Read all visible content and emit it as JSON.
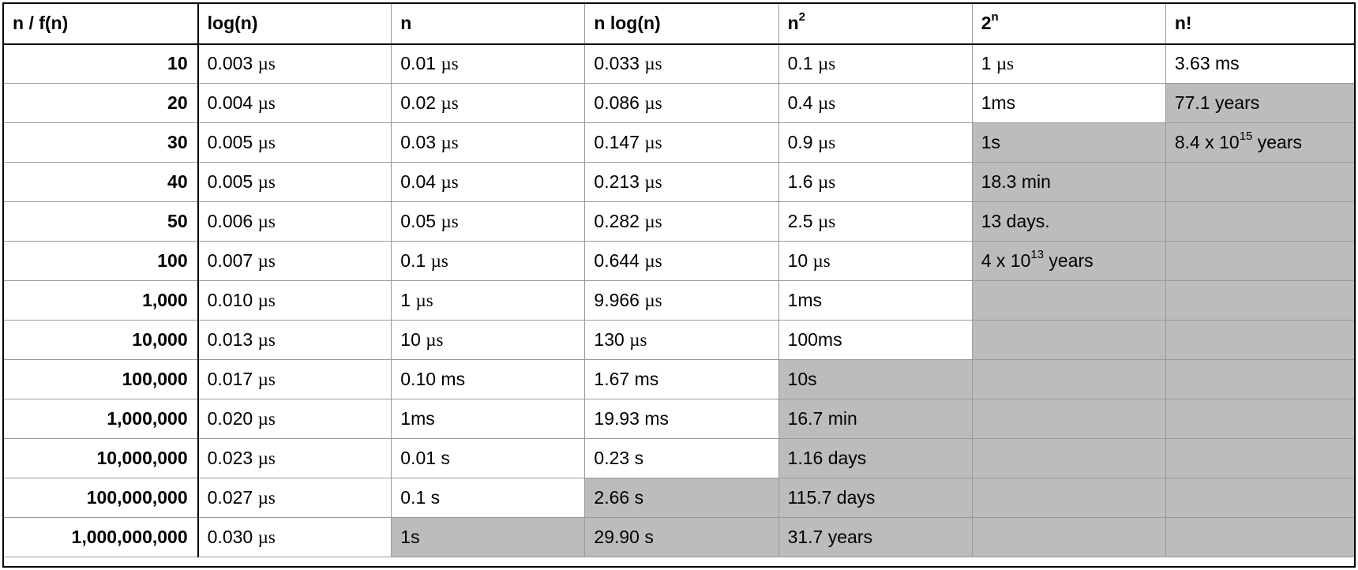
{
  "table": {
    "headers": [
      {
        "base": "n / f(n)",
        "sup": ""
      },
      {
        "base": "log(n)",
        "sup": ""
      },
      {
        "base": "n",
        "sup": ""
      },
      {
        "base": "n log(n)",
        "sup": ""
      },
      {
        "base": "n",
        "sup": "2"
      },
      {
        "base": "2",
        "sup": "n"
      },
      {
        "base": "n!",
        "sup": ""
      }
    ],
    "rows": [
      {
        "n": "10",
        "cells": [
          {
            "v": "0.003",
            "u": "µs",
            "shaded": false
          },
          {
            "v": "0.01",
            "u": "µs",
            "shaded": false
          },
          {
            "v": "0.033",
            "u": "µs",
            "shaded": false
          },
          {
            "v": "0.1",
            "u": "µs",
            "shaded": false
          },
          {
            "v": "1",
            "u": "µs",
            "shaded": false
          },
          {
            "v": "3.63 ms",
            "shaded": false
          }
        ]
      },
      {
        "n": "20",
        "cells": [
          {
            "v": "0.004",
            "u": "µs",
            "shaded": false
          },
          {
            "v": "0.02",
            "u": "µs",
            "shaded": false
          },
          {
            "v": "0.086",
            "u": "µs",
            "shaded": false
          },
          {
            "v": "0.4",
            "u": "µs",
            "shaded": false
          },
          {
            "v": "1ms",
            "shaded": false
          },
          {
            "v": "77.1 years",
            "shaded": true
          }
        ]
      },
      {
        "n": "30",
        "cells": [
          {
            "v": "0.005",
            "u": "µs",
            "shaded": false
          },
          {
            "v": "0.03",
            "u": "µs",
            "shaded": false
          },
          {
            "v": "0.147",
            "u": "µs",
            "shaded": false
          },
          {
            "v": "0.9",
            "u": "µs",
            "shaded": false
          },
          {
            "v": "1s",
            "shaded": true
          },
          {
            "v": "8.4 x 10",
            "sup": "15",
            "after": " years",
            "shaded": true
          }
        ]
      },
      {
        "n": "40",
        "cells": [
          {
            "v": "0.005",
            "u": "µs",
            "shaded": false
          },
          {
            "v": "0.04",
            "u": "µs",
            "shaded": false
          },
          {
            "v": "0.213",
            "u": "µs",
            "shaded": false
          },
          {
            "v": "1.6",
            "u": "µs",
            "shaded": false
          },
          {
            "v": "18.3 min",
            "shaded": true
          },
          {
            "v": "",
            "shaded": true
          }
        ]
      },
      {
        "n": "50",
        "cells": [
          {
            "v": "0.006",
            "u": "µs",
            "shaded": false
          },
          {
            "v": "0.05",
            "u": "µs",
            "shaded": false
          },
          {
            "v": "0.282",
            "u": "µs",
            "shaded": false
          },
          {
            "v": "2.5",
            "u": "µs",
            "shaded": false
          },
          {
            "v": "13 days.",
            "shaded": true
          },
          {
            "v": "",
            "shaded": true
          }
        ]
      },
      {
        "n": "100",
        "cells": [
          {
            "v": "0.007",
            "u": "µs",
            "shaded": false
          },
          {
            "v": "0.1",
            "u": "µs",
            "shaded": false
          },
          {
            "v": "0.644",
            "u": "µs",
            "shaded": false
          },
          {
            "v": "10",
            "u": "µs",
            "shaded": false
          },
          {
            "v": "4 x 10",
            "sup": "13",
            "after": " years",
            "shaded": true
          },
          {
            "v": "",
            "shaded": true
          }
        ]
      },
      {
        "n": "1,000",
        "cells": [
          {
            "v": "0.010",
            "u": "µs",
            "shaded": false
          },
          {
            "v": "1",
            "u": "µs",
            "shaded": false
          },
          {
            "v": "9.966",
            "u": "µs",
            "shaded": false
          },
          {
            "v": "1ms",
            "shaded": false
          },
          {
            "v": "",
            "shaded": true
          },
          {
            "v": "",
            "shaded": true
          }
        ]
      },
      {
        "n": "10,000",
        "cells": [
          {
            "v": "0.013",
            "u": "µs",
            "shaded": false
          },
          {
            "v": "10",
            "u": "µs",
            "shaded": false
          },
          {
            "v": "130",
            "u": "µs",
            "shaded": false
          },
          {
            "v": "100ms",
            "shaded": false
          },
          {
            "v": "",
            "shaded": true
          },
          {
            "v": "",
            "shaded": true
          }
        ]
      },
      {
        "n": "100,000",
        "cells": [
          {
            "v": "0.017",
            "u": "µs",
            "shaded": false
          },
          {
            "v": "0.10 ms",
            "shaded": false
          },
          {
            "v": "1.67 ms",
            "shaded": false
          },
          {
            "v": "10s",
            "shaded": true
          },
          {
            "v": "",
            "shaded": true
          },
          {
            "v": "",
            "shaded": true
          }
        ]
      },
      {
        "n": "1,000,000",
        "cells": [
          {
            "v": "0.020",
            "u": "µs",
            "shaded": false
          },
          {
            "v": "1ms",
            "shaded": false
          },
          {
            "v": "19.93 ms",
            "shaded": false
          },
          {
            "v": "16.7 min",
            "shaded": true
          },
          {
            "v": "",
            "shaded": true
          },
          {
            "v": "",
            "shaded": true
          }
        ]
      },
      {
        "n": "10,000,000",
        "cells": [
          {
            "v": "0.023",
            "u": "µs",
            "shaded": false
          },
          {
            "v": "0.01 s",
            "shaded": false
          },
          {
            "v": "0.23 s",
            "shaded": false
          },
          {
            "v": "1.16 days",
            "shaded": true
          },
          {
            "v": "",
            "shaded": true
          },
          {
            "v": "",
            "shaded": true
          }
        ]
      },
      {
        "n": "100,000,000",
        "cells": [
          {
            "v": "0.027",
            "u": "µs",
            "shaded": false
          },
          {
            "v": "0.1 s",
            "shaded": false
          },
          {
            "v": "2.66 s",
            "shaded": true
          },
          {
            "v": "115.7 days",
            "shaded": true
          },
          {
            "v": "",
            "shaded": true
          },
          {
            "v": "",
            "shaded": true
          }
        ]
      },
      {
        "n": "1,000,000,000",
        "cells": [
          {
            "v": "0.030",
            "u": "µs",
            "shaded": false
          },
          {
            "v": "1s",
            "shaded": true
          },
          {
            "v": "29.90 s",
            "shaded": true
          },
          {
            "v": "31.7 years",
            "shaded": true
          },
          {
            "v": "",
            "shaded": true
          },
          {
            "v": "",
            "shaded": true
          }
        ]
      }
    ]
  }
}
